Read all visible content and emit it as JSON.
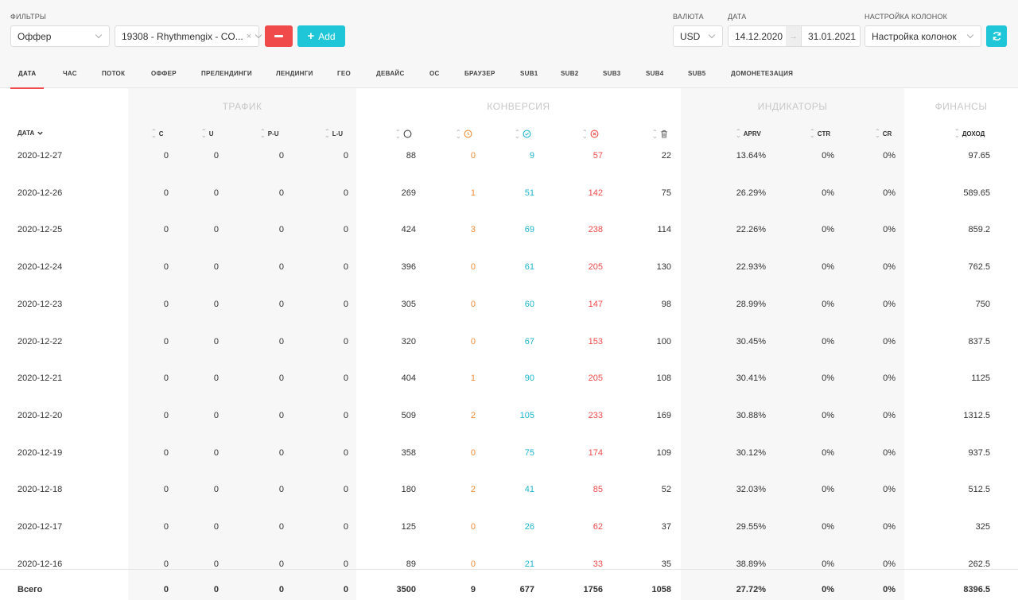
{
  "filters": {
    "label": "ФИЛЬТРЫ",
    "type_select": "Оффер",
    "value_select": "19308 - Rhythmengix - CO...",
    "clear_symbol": "×",
    "add_label": "Add"
  },
  "currency": {
    "label": "ВАЛЮТА",
    "value": "USD"
  },
  "date": {
    "label": "ДАТА",
    "from": "14.12.2020",
    "to": "31.01.2021",
    "arrow": "→"
  },
  "columns_setting": {
    "label": "НАСТРОЙКА КОЛОНОК",
    "value": "Настройка колонок"
  },
  "tabs": [
    "ДАТА",
    "ЧАС",
    "ПОТОК",
    "ОФФЕР",
    "ПРЕЛЕНДИНГИ",
    "ЛЕНДИНГИ",
    "ГЕО",
    "ДЕВАЙС",
    "ОС",
    "БРАУЗЕР",
    "SUB1",
    "SUB2",
    "SUB3",
    "SUB4",
    "SUB5",
    "ДОМОНЕТЕЗАЦИЯ"
  ],
  "active_tab": "ДАТА",
  "groups": {
    "traffic": "ТРАФИК",
    "conversion": "КОНВЕРСИЯ",
    "indicators": "ИНДИКАТОРЫ",
    "finance": "ФИНАНСЫ"
  },
  "headers": {
    "date": "ДАТА",
    "c": "C",
    "u": "U",
    "pu": "P-U",
    "lu": "L-U",
    "apprv": "APRV",
    "ctr": "CTR",
    "cr": "CR",
    "income": "ДОХОД"
  },
  "header_icons": [
    "circle-icon",
    "hold-icon",
    "approved-icon",
    "rejected-icon",
    "trash-icon"
  ],
  "rows": [
    {
      "date": "2020-12-27",
      "c": "0",
      "u": "0",
      "pu": "0",
      "lu": "0",
      "total": "88",
      "hold": "0",
      "approved": "9",
      "rejected": "57",
      "trash": "22",
      "apprv": "13.64%",
      "ctr": "0%",
      "cr": "0%",
      "income": "97.65"
    },
    {
      "date": "2020-12-26",
      "c": "0",
      "u": "0",
      "pu": "0",
      "lu": "0",
      "total": "269",
      "hold": "1",
      "approved": "51",
      "rejected": "142",
      "trash": "75",
      "apprv": "26.29%",
      "ctr": "0%",
      "cr": "0%",
      "income": "589.65"
    },
    {
      "date": "2020-12-25",
      "c": "0",
      "u": "0",
      "pu": "0",
      "lu": "0",
      "total": "424",
      "hold": "3",
      "approved": "69",
      "rejected": "238",
      "trash": "114",
      "apprv": "22.26%",
      "ctr": "0%",
      "cr": "0%",
      "income": "859.2"
    },
    {
      "date": "2020-12-24",
      "c": "0",
      "u": "0",
      "pu": "0",
      "lu": "0",
      "total": "396",
      "hold": "0",
      "approved": "61",
      "rejected": "205",
      "trash": "130",
      "apprv": "22.93%",
      "ctr": "0%",
      "cr": "0%",
      "income": "762.5"
    },
    {
      "date": "2020-12-23",
      "c": "0",
      "u": "0",
      "pu": "0",
      "lu": "0",
      "total": "305",
      "hold": "0",
      "approved": "60",
      "rejected": "147",
      "trash": "98",
      "apprv": "28.99%",
      "ctr": "0%",
      "cr": "0%",
      "income": "750"
    },
    {
      "date": "2020-12-22",
      "c": "0",
      "u": "0",
      "pu": "0",
      "lu": "0",
      "total": "320",
      "hold": "0",
      "approved": "67",
      "rejected": "153",
      "trash": "100",
      "apprv": "30.45%",
      "ctr": "0%",
      "cr": "0%",
      "income": "837.5"
    },
    {
      "date": "2020-12-21",
      "c": "0",
      "u": "0",
      "pu": "0",
      "lu": "0",
      "total": "404",
      "hold": "1",
      "approved": "90",
      "rejected": "205",
      "trash": "108",
      "apprv": "30.41%",
      "ctr": "0%",
      "cr": "0%",
      "income": "1125"
    },
    {
      "date": "2020-12-20",
      "c": "0",
      "u": "0",
      "pu": "0",
      "lu": "0",
      "total": "509",
      "hold": "2",
      "approved": "105",
      "rejected": "233",
      "trash": "169",
      "apprv": "30.88%",
      "ctr": "0%",
      "cr": "0%",
      "income": "1312.5"
    },
    {
      "date": "2020-12-19",
      "c": "0",
      "u": "0",
      "pu": "0",
      "lu": "0",
      "total": "358",
      "hold": "0",
      "approved": "75",
      "rejected": "174",
      "trash": "109",
      "apprv": "30.12%",
      "ctr": "0%",
      "cr": "0%",
      "income": "937.5"
    },
    {
      "date": "2020-12-18",
      "c": "0",
      "u": "0",
      "pu": "0",
      "lu": "0",
      "total": "180",
      "hold": "2",
      "approved": "41",
      "rejected": "85",
      "trash": "52",
      "apprv": "32.03%",
      "ctr": "0%",
      "cr": "0%",
      "income": "512.5"
    },
    {
      "date": "2020-12-17",
      "c": "0",
      "u": "0",
      "pu": "0",
      "lu": "0",
      "total": "125",
      "hold": "0",
      "approved": "26",
      "rejected": "62",
      "trash": "37",
      "apprv": "29.55%",
      "ctr": "0%",
      "cr": "0%",
      "income": "325"
    },
    {
      "date": "2020-12-16",
      "c": "0",
      "u": "0",
      "pu": "0",
      "lu": "0",
      "total": "89",
      "hold": "0",
      "approved": "21",
      "rejected": "33",
      "trash": "35",
      "apprv": "38.89%",
      "ctr": "0%",
      "cr": "0%",
      "income": "262.5"
    }
  ],
  "totals": {
    "label": "Всего",
    "c": "0",
    "u": "0",
    "pu": "0",
    "lu": "0",
    "total": "3500",
    "hold": "9",
    "approved": "677",
    "rejected": "1756",
    "trash": "1058",
    "apprv": "27.72%",
    "ctr": "0%",
    "cr": "0%",
    "income": "8396.5"
  },
  "colors": {
    "accent_red": "#f04a4a",
    "accent_cyan": "#1fc6d8",
    "hold_orange": "#f28c38",
    "approved_cyan": "#1fb5cc",
    "rejected_red": "#ee4a4a"
  }
}
